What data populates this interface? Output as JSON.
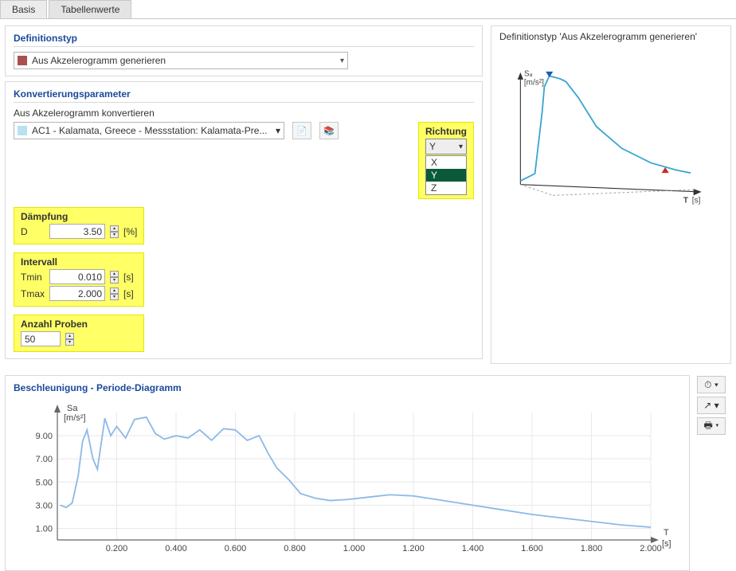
{
  "tabs": {
    "basis": "Basis",
    "tabellenwerte": "Tabellenwerte",
    "active": "tabellenwerte"
  },
  "def": {
    "title": "Definitionstyp",
    "value": "Aus Akzelerogramm generieren",
    "swatch": "#a85050"
  },
  "conv": {
    "title": "Konvertierungsparameter",
    "label": "Aus Akzelerogramm konvertieren",
    "accel_value": "AC1 - Kalamata, Greece - Messstation: Kalamata-Pre...",
    "dir_title": "Richtung",
    "dir_selected": "Y",
    "dir_options": [
      "X",
      "Y",
      "Z"
    ]
  },
  "damp": {
    "title": "Dämpfung",
    "D_label": "D",
    "D_value": "3.50",
    "D_unit": "[%]"
  },
  "intv": {
    "title": "Intervall",
    "tmin_label": "Tmin",
    "tmin_value": "0.010",
    "tmax_label": "Tmax",
    "tmax_value": "2.000",
    "unit": "[s]"
  },
  "samples": {
    "title": "Anzahl Proben",
    "value": "50"
  },
  "right": {
    "title": "Definitionstyp 'Aus Akzelerogramm generieren'",
    "ylabel": "Sₐ",
    "yunit": "[m/s²]",
    "xlabel": "T",
    "xunit": "[s]"
  },
  "chart": {
    "title": "Beschleunigung - Periode-Diagramm",
    "type": "line",
    "ylabel": "Sa",
    "yunit": "[m/s²]",
    "xlabel": "T",
    "xunit": "[s]",
    "xlim": [
      0,
      2.0
    ],
    "ylim": [
      0,
      11
    ],
    "xticks": [
      0.2,
      0.4,
      0.6,
      0.8,
      1.0,
      1.2,
      1.4,
      1.6,
      1.8,
      2.0
    ],
    "yticks": [
      1.0,
      3.0,
      5.0,
      7.0,
      9.0
    ],
    "line_color": "#8cb9e8",
    "grid_color": "#e8e8e8",
    "axis_color": "#666666",
    "background_color": "#ffffff",
    "data": [
      [
        0.01,
        3.0
      ],
      [
        0.03,
        2.8
      ],
      [
        0.05,
        3.2
      ],
      [
        0.07,
        5.5
      ],
      [
        0.085,
        8.5
      ],
      [
        0.1,
        9.5
      ],
      [
        0.12,
        7.0
      ],
      [
        0.135,
        6.1
      ],
      [
        0.16,
        10.5
      ],
      [
        0.18,
        9.0
      ],
      [
        0.2,
        9.8
      ],
      [
        0.23,
        8.8
      ],
      [
        0.26,
        10.4
      ],
      [
        0.3,
        10.6
      ],
      [
        0.33,
        9.2
      ],
      [
        0.36,
        8.7
      ],
      [
        0.4,
        9.0
      ],
      [
        0.44,
        8.8
      ],
      [
        0.48,
        9.5
      ],
      [
        0.52,
        8.6
      ],
      [
        0.56,
        9.6
      ],
      [
        0.6,
        9.5
      ],
      [
        0.64,
        8.6
      ],
      [
        0.68,
        9.0
      ],
      [
        0.71,
        7.5
      ],
      [
        0.74,
        6.2
      ],
      [
        0.78,
        5.2
      ],
      [
        0.82,
        4.0
      ],
      [
        0.87,
        3.6
      ],
      [
        0.92,
        3.4
      ],
      [
        0.98,
        3.5
      ],
      [
        1.05,
        3.7
      ],
      [
        1.12,
        3.9
      ],
      [
        1.2,
        3.8
      ],
      [
        1.3,
        3.4
      ],
      [
        1.4,
        3.0
      ],
      [
        1.5,
        2.6
      ],
      [
        1.6,
        2.2
      ],
      [
        1.7,
        1.9
      ],
      [
        1.8,
        1.6
      ],
      [
        1.9,
        1.3
      ],
      [
        2.0,
        1.1
      ]
    ]
  },
  "sketch_curve": {
    "line_color": "#3aa6d0",
    "curve": [
      [
        15,
        185
      ],
      [
        35,
        175
      ],
      [
        45,
        90
      ],
      [
        48,
        55
      ],
      [
        55,
        40
      ],
      [
        70,
        44
      ],
      [
        78,
        48
      ],
      [
        95,
        70
      ],
      [
        120,
        110
      ],
      [
        155,
        140
      ],
      [
        195,
        160
      ],
      [
        230,
        170
      ],
      [
        250,
        174
      ]
    ],
    "marker1": {
      "x": 55,
      "y": 40,
      "color": "#1a5bb0"
    },
    "marker2": {
      "x": 215,
      "y": 168,
      "color": "#cc2a2a"
    }
  }
}
